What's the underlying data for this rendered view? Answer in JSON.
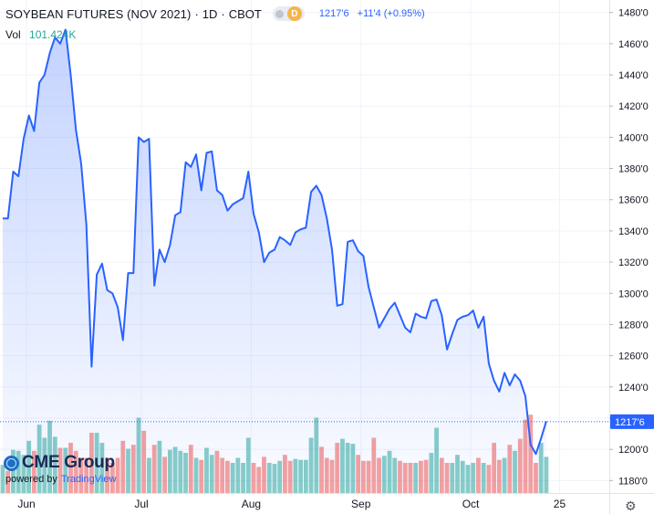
{
  "header": {
    "title": "SOYBEAN FUTURES (NOV 2021)",
    "interval": "1D",
    "exchange": "CBOT",
    "badge": "D",
    "last_price": "1217'6",
    "change": "+11'4 (+0.95%)"
  },
  "volume": {
    "label": "Vol",
    "value": "101.424K"
  },
  "logo": {
    "brand": "CME Group",
    "powered_by": "powered by",
    "provider": "TradingView"
  },
  "icons": {
    "settings": "gear-icon",
    "globe": "globe-icon"
  },
  "colors": {
    "line": "#2962ff",
    "area": "#2962ff",
    "vol_up": "#26a69a",
    "vol_down": "#ef5350",
    "price_tag": "#2962ff"
  },
  "chart_data": {
    "type": "area",
    "title": "SOYBEAN FUTURES (NOV 2021)",
    "x_tick_labels": [
      "Jun",
      "Jul",
      "Aug",
      "Sep",
      "Oct",
      "25"
    ],
    "y_tick_labels": [
      "1180'0",
      "1200'0",
      "1220'0",
      "1240'0",
      "1260'0",
      "1280'0",
      "1300'0",
      "1320'0",
      "1340'0",
      "1360'0",
      "1380'0",
      "1400'0",
      "1420'0",
      "1440'0",
      "1460'0",
      "1480'0"
    ],
    "y_ticks": [
      1180,
      1200,
      1220,
      1240,
      1260,
      1280,
      1300,
      1320,
      1340,
      1360,
      1380,
      1400,
      1420,
      1440,
      1460,
      1480
    ],
    "ylim": [
      1172,
      1488
    ],
    "x_months_start": [
      0,
      22,
      43,
      64,
      85
    ],
    "x_extra_tick_index": 102,
    "price_label": "1217'6",
    "current_value": 1217.75,
    "grid": true,
    "close": [
      1348,
      1348,
      1378,
      1375,
      1399,
      1414,
      1404,
      1435,
      1440,
      1454,
      1464,
      1460,
      1469,
      1440,
      1405,
      1383,
      1344,
      1253,
      1312,
      1319,
      1302,
      1300,
      1291,
      1270,
      1313,
      1313,
      1400,
      1397,
      1399,
      1305,
      1328,
      1320,
      1331,
      1350,
      1352,
      1384,
      1381,
      1389,
      1366,
      1390,
      1391,
      1366,
      1363,
      1353,
      1357,
      1359,
      1361,
      1378,
      1351,
      1339,
      1320,
      1326,
      1328,
      1336,
      1334,
      1331,
      1339,
      1341,
      1342,
      1365,
      1369,
      1363,
      1348,
      1328,
      1292,
      1293,
      1333,
      1334,
      1327,
      1324,
      1304,
      1291,
      1278,
      1284,
      1290,
      1294,
      1286,
      1278,
      1275,
      1287,
      1285,
      1284,
      1295,
      1296,
      1286,
      1264,
      1274,
      1283,
      1285,
      1286,
      1289,
      1278,
      1285,
      1255,
      1244,
      1237,
      1249,
      1241,
      1248,
      1244,
      1234,
      1203,
      1197,
      1207,
      1218
    ],
    "volume": [
      0.28,
      0.22,
      0.43,
      0.42,
      0.38,
      0.52,
      0.42,
      0.68,
      0.55,
      0.72,
      0.56,
      0.45,
      0.45,
      0.5,
      0.42,
      0.35,
      0.35,
      0.6,
      0.6,
      0.5,
      0.35,
      0.3,
      0.35,
      0.52,
      0.44,
      0.48,
      0.75,
      0.62,
      0.35,
      0.48,
      0.52,
      0.36,
      0.43,
      0.46,
      0.42,
      0.4,
      0.48,
      0.35,
      0.33,
      0.45,
      0.38,
      0.42,
      0.35,
      0.32,
      0.3,
      0.35,
      0.3,
      0.55,
      0.3,
      0.26,
      0.36,
      0.3,
      0.29,
      0.32,
      0.38,
      0.32,
      0.34,
      0.33,
      0.33,
      0.55,
      0.75,
      0.46,
      0.35,
      0.33,
      0.5,
      0.54,
      0.5,
      0.49,
      0.38,
      0.32,
      0.32,
      0.55,
      0.35,
      0.37,
      0.42,
      0.35,
      0.32,
      0.3,
      0.3,
      0.3,
      0.32,
      0.33,
      0.4,
      0.65,
      0.35,
      0.3,
      0.3,
      0.38,
      0.32,
      0.28,
      0.3,
      0.35,
      0.3,
      0.28,
      0.5,
      0.33,
      0.35,
      0.48,
      0.42,
      0.54,
      0.73,
      0.78,
      0.3,
      0.5,
      0.36
    ],
    "volume_up": [
      1,
      0,
      1,
      1,
      1,
      1,
      0,
      1,
      1,
      1,
      1,
      0,
      1,
      0,
      0,
      0,
      0,
      0,
      1,
      1,
      0,
      0,
      0,
      0,
      1,
      0,
      1,
      0,
      1,
      0,
      1,
      0,
      1,
      1,
      1,
      1,
      0,
      1,
      0,
      1,
      1,
      0,
      0,
      0,
      1,
      1,
      1,
      1,
      0,
      0,
      0,
      1,
      1,
      1,
      0,
      0,
      1,
      1,
      1,
      1,
      1,
      0,
      0,
      0,
      0,
      1,
      1,
      1,
      0,
      0,
      0,
      0,
      0,
      1,
      1,
      1,
      0,
      0,
      0,
      1,
      0,
      0,
      1,
      1,
      0,
      0,
      1,
      1,
      1,
      1,
      1,
      0,
      1,
      0,
      0,
      0,
      1,
      0,
      1,
      0,
      0,
      0,
      0,
      1,
      1
    ]
  }
}
